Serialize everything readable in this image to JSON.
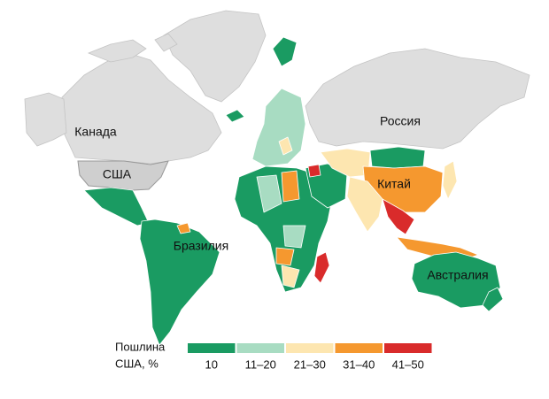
{
  "labels": {
    "canada": "Канада",
    "usa": "США",
    "russia": "Россия",
    "china": "Китай",
    "brazil": "Бразилия",
    "australia": "Австралия"
  },
  "legend": {
    "title": [
      "Пошлина",
      "США, %"
    ],
    "items": [
      {
        "label": "10",
        "color": "#1a9b62"
      },
      {
        "label": "11–20",
        "color": "#a8dcc2"
      },
      {
        "label": "21–30",
        "color": "#fde6b0"
      },
      {
        "label": "31–40",
        "color": "#f5982f"
      },
      {
        "label": "41–50",
        "color": "#d92b2b"
      }
    ]
  }
}
